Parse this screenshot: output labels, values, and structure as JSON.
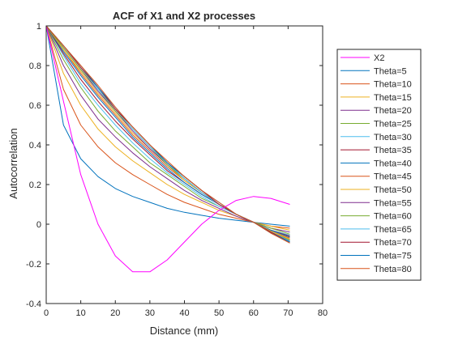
{
  "chart_data": {
    "type": "line",
    "title": "ACF of X1 and X2 processes",
    "xlabel": "Distance (mm)",
    "ylabel": "Autocorrelation",
    "xlim": [
      0,
      80
    ],
    "ylim": [
      -0.4,
      1
    ],
    "xticks": [
      "0",
      "10",
      "20",
      "30",
      "40",
      "50",
      "60",
      "70",
      "80"
    ],
    "yticks": [
      "-0.4",
      "-0.2",
      "0",
      "0.2",
      "0.4",
      "0.6",
      "0.8",
      "1"
    ],
    "grid": false,
    "legend_position": "right",
    "x": [
      0,
      5,
      10,
      15,
      20,
      25,
      30,
      35,
      40,
      45,
      50,
      55,
      60,
      65,
      70.5
    ],
    "series": [
      {
        "name": "X2",
        "color": "#ff00ff",
        "values": [
          1.0,
          0.62,
          0.25,
          0.0,
          -0.16,
          -0.24,
          -0.24,
          -0.18,
          -0.09,
          0.0,
          0.07,
          0.12,
          0.14,
          0.13,
          0.1
        ]
      },
      {
        "name": "Theta=5",
        "color": "#0072bd",
        "values": [
          1.0,
          0.5,
          0.33,
          0.24,
          0.18,
          0.14,
          0.11,
          0.08,
          0.06,
          0.045,
          0.03,
          0.02,
          0.01,
          0.0,
          -0.01
        ]
      },
      {
        "name": "Theta=10",
        "color": "#d95319",
        "values": [
          1.0,
          0.68,
          0.5,
          0.39,
          0.31,
          0.25,
          0.2,
          0.15,
          0.11,
          0.08,
          0.05,
          0.03,
          0.01,
          -0.01,
          -0.02
        ]
      },
      {
        "name": "Theta=15",
        "color": "#edb120",
        "values": [
          1.0,
          0.76,
          0.6,
          0.48,
          0.39,
          0.32,
          0.26,
          0.2,
          0.15,
          0.11,
          0.07,
          0.04,
          0.01,
          -0.01,
          -0.03
        ]
      },
      {
        "name": "Theta=20",
        "color": "#7e2f8e",
        "values": [
          1.0,
          0.8,
          0.65,
          0.53,
          0.44,
          0.36,
          0.29,
          0.23,
          0.17,
          0.12,
          0.08,
          0.04,
          0.01,
          -0.02,
          -0.04
        ]
      },
      {
        "name": "Theta=25",
        "color": "#77ac30",
        "values": [
          1.0,
          0.83,
          0.69,
          0.57,
          0.47,
          0.39,
          0.31,
          0.25,
          0.19,
          0.13,
          0.09,
          0.05,
          0.01,
          -0.02,
          -0.05
        ]
      },
      {
        "name": "Theta=30",
        "color": "#4dbeee",
        "values": [
          1.0,
          0.85,
          0.71,
          0.6,
          0.5,
          0.41,
          0.33,
          0.26,
          0.2,
          0.14,
          0.09,
          0.05,
          0.01,
          -0.03,
          -0.055
        ]
      },
      {
        "name": "Theta=35",
        "color": "#a2142f",
        "values": [
          1.0,
          0.86,
          0.73,
          0.62,
          0.52,
          0.43,
          0.35,
          0.27,
          0.21,
          0.15,
          0.1,
          0.05,
          0.01,
          -0.03,
          -0.06
        ]
      },
      {
        "name": "Theta=40",
        "color": "#0072bd",
        "values": [
          1.0,
          0.87,
          0.75,
          0.64,
          0.54,
          0.44,
          0.36,
          0.28,
          0.21,
          0.15,
          0.1,
          0.05,
          0.01,
          -0.03,
          -0.065
        ]
      },
      {
        "name": "Theta=45",
        "color": "#d95319",
        "values": [
          1.0,
          0.88,
          0.76,
          0.65,
          0.55,
          0.45,
          0.37,
          0.29,
          0.22,
          0.16,
          0.1,
          0.05,
          0.01,
          -0.035,
          -0.07
        ]
      },
      {
        "name": "Theta=50",
        "color": "#edb120",
        "values": [
          1.0,
          0.88,
          0.77,
          0.66,
          0.56,
          0.46,
          0.38,
          0.3,
          0.22,
          0.16,
          0.1,
          0.05,
          0.01,
          -0.035,
          -0.075
        ]
      },
      {
        "name": "Theta=55",
        "color": "#7e2f8e",
        "values": [
          1.0,
          0.89,
          0.78,
          0.67,
          0.57,
          0.47,
          0.38,
          0.3,
          0.23,
          0.16,
          0.1,
          0.05,
          0.01,
          -0.04,
          -0.08
        ]
      },
      {
        "name": "Theta=60",
        "color": "#77ac30",
        "values": [
          1.0,
          0.89,
          0.78,
          0.68,
          0.57,
          0.48,
          0.39,
          0.3,
          0.23,
          0.16,
          0.1,
          0.05,
          0.01,
          -0.04,
          -0.08
        ]
      },
      {
        "name": "Theta=65",
        "color": "#4dbeee",
        "values": [
          1.0,
          0.9,
          0.79,
          0.68,
          0.58,
          0.48,
          0.39,
          0.31,
          0.23,
          0.16,
          0.1,
          0.05,
          0.01,
          -0.04,
          -0.085
        ]
      },
      {
        "name": "Theta=70",
        "color": "#a2142f",
        "values": [
          1.0,
          0.9,
          0.79,
          0.69,
          0.58,
          0.49,
          0.4,
          0.31,
          0.24,
          0.17,
          0.1,
          0.05,
          0.01,
          -0.04,
          -0.09
        ]
      },
      {
        "name": "Theta=75",
        "color": "#0072bd",
        "values": [
          1.0,
          0.9,
          0.8,
          0.69,
          0.59,
          0.49,
          0.4,
          0.31,
          0.24,
          0.17,
          0.11,
          0.05,
          0.01,
          -0.045,
          -0.09
        ]
      },
      {
        "name": "Theta=80",
        "color": "#d95319",
        "values": [
          1.0,
          0.9,
          0.8,
          0.7,
          0.59,
          0.49,
          0.4,
          0.32,
          0.24,
          0.17,
          0.11,
          0.05,
          0.01,
          -0.045,
          -0.095
        ]
      }
    ]
  }
}
